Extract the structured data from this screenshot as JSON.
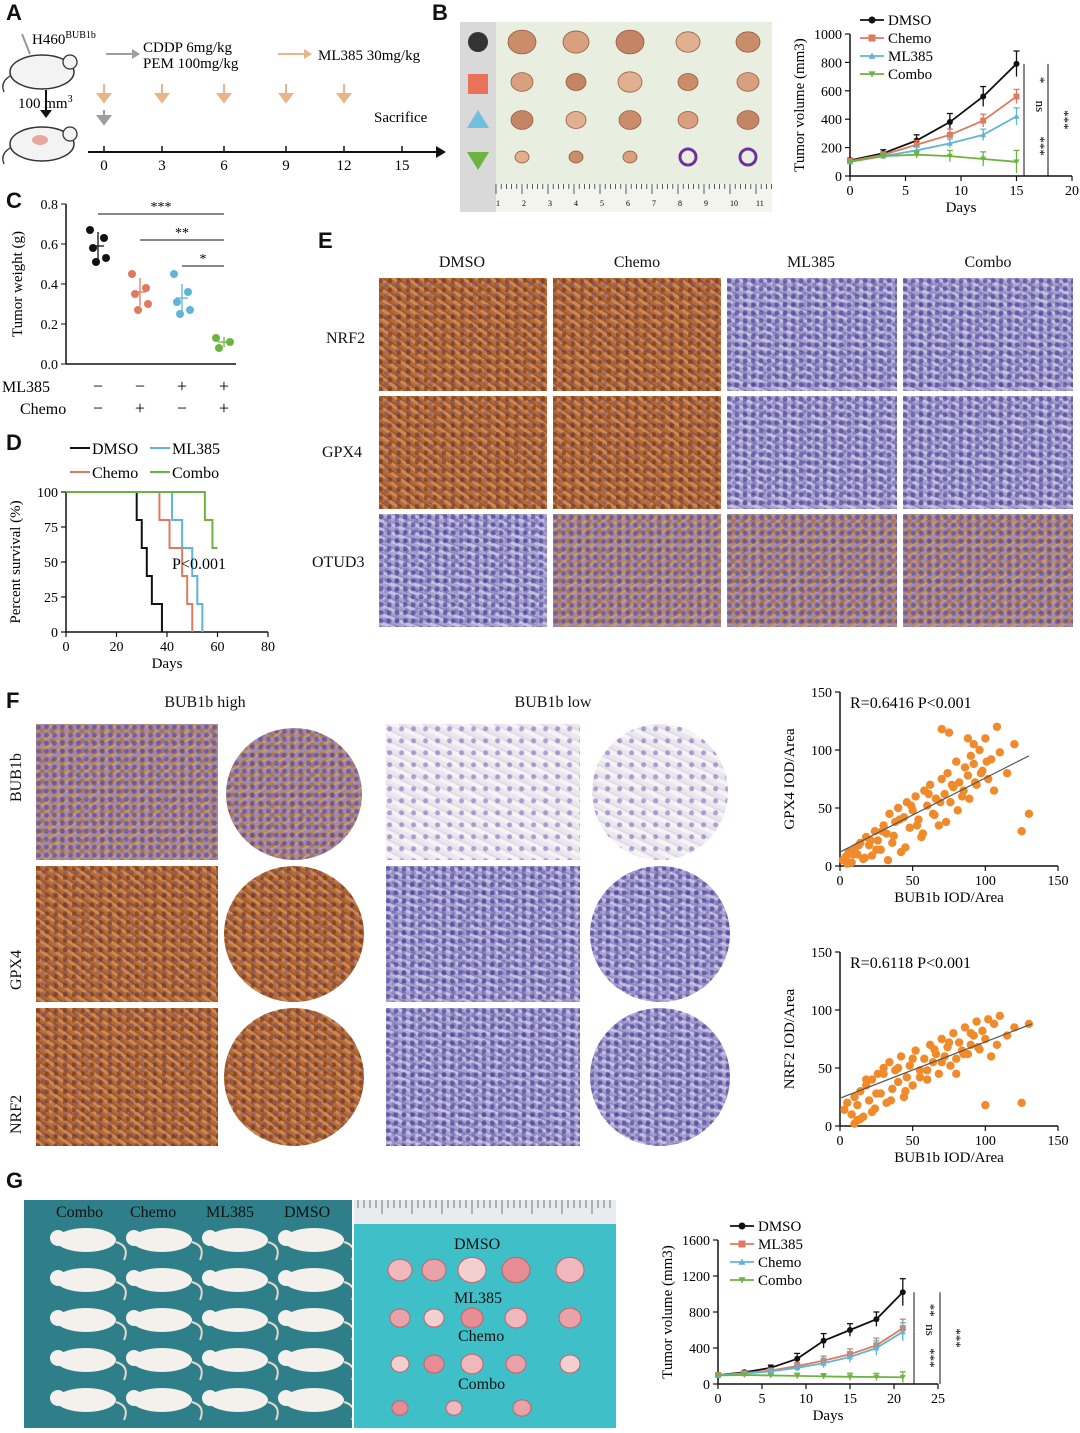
{
  "panels": {
    "A": "A",
    "B": "B",
    "C": "C",
    "D": "D",
    "E": "E",
    "F": "F",
    "G": "G"
  },
  "panel_a": {
    "cell_line": "H460",
    "cell_line_sup": "BUB1b",
    "drug1_line1": "CDDP 6mg/kg",
    "drug1_line2": "PEM 100mg/kg",
    "drug2": "ML385 30mg/kg",
    "size_label": "100 mm",
    "size_sup": "3",
    "days": [
      "0",
      "3",
      "6",
      "9",
      "12",
      "15"
    ],
    "endpoint": "Sacrifice",
    "colors": {
      "chemo_arrow": "#9e9e9e",
      "ml385_arrow": "#e8b48a"
    }
  },
  "panel_b": {
    "ruler_numbers": [
      "1",
      "2",
      "3",
      "4",
      "5",
      "6",
      "7",
      "8",
      "9",
      "10",
      "11",
      "1"
    ],
    "row_markers": [
      "circle",
      "square",
      "triangle-up",
      "triangle-down"
    ],
    "marker_colors": [
      "#333333",
      "#e8735a",
      "#6fc0dc",
      "#6db33f"
    ]
  },
  "panel_c": {
    "ylabel": "Tumor weight (g)",
    "yticks": [
      "0.0",
      "0.2",
      "0.4",
      "0.6",
      "0.8"
    ],
    "row_ml385": "ML385",
    "row_chemo": "Chemo",
    "ml385_signs": [
      "−",
      "−",
      "+",
      "+"
    ],
    "chemo_signs": [
      "−",
      "+",
      "−",
      "+"
    ],
    "sig": [
      "***",
      "**",
      "*"
    ]
  },
  "panel_e": {
    "columns": [
      "DMSO",
      "Chemo",
      "ML385",
      "Combo"
    ],
    "rows": [
      "NRF2",
      "GPX4",
      "OTUD3"
    ]
  },
  "panel_f": {
    "col_high": "BUB1b high",
    "col_low": "BUB1b low",
    "rows": [
      "BUB1b",
      "GPX4",
      "NRF2"
    ]
  },
  "panel_g": {
    "photo_labels": [
      "Combo",
      "Chemo",
      "ML385",
      "DMSO"
    ],
    "tumor_labels": [
      "DMSO",
      "ML385",
      "Chemo",
      "Combo"
    ]
  },
  "chart_data": [
    {
      "id": "B-growth",
      "type": "line",
      "ylabel": "Tumor volume (mm3)",
      "xlabel": "Days",
      "xlim": [
        0,
        20
      ],
      "ylim": [
        0,
        1000
      ],
      "xticks": [
        "0",
        "5",
        "10",
        "15",
        "20"
      ],
      "yticks": [
        "0",
        "200",
        "400",
        "600",
        "800",
        "1000"
      ],
      "x": [
        0,
        3,
        6,
        9,
        12,
        15
      ],
      "series": [
        {
          "name": "DMSO",
          "color": "#111111",
          "values": [
            110,
            160,
            250,
            380,
            560,
            790
          ],
          "err": [
            15,
            25,
            40,
            60,
            70,
            90
          ]
        },
        {
          "name": "Chemo",
          "color": "#e07a5f",
          "values": [
            105,
            150,
            220,
            290,
            390,
            560
          ],
          "err": [
            15,
            20,
            30,
            40,
            45,
            50
          ]
        },
        {
          "name": "ML385",
          "color": "#5fb4d9",
          "values": [
            100,
            140,
            180,
            230,
            290,
            420
          ],
          "err": [
            15,
            20,
            25,
            30,
            40,
            60
          ]
        },
        {
          "name": "Combo",
          "color": "#6db33f",
          "values": [
            100,
            140,
            150,
            140,
            120,
            100
          ],
          "err": [
            15,
            20,
            25,
            40,
            50,
            80
          ]
        }
      ],
      "sig": [
        "*",
        "ns",
        "***",
        "***"
      ]
    },
    {
      "id": "C-weight",
      "type": "scatter",
      "ylim": [
        0,
        0.8
      ],
      "groups": [
        {
          "color": "#111111",
          "values": [
            0.67,
            0.63,
            0.58,
            0.53,
            0.51
          ],
          "mean": 0.59,
          "sd": 0.07
        },
        {
          "color": "#e07a5f",
          "values": [
            0.45,
            0.38,
            0.35,
            0.3,
            0.27
          ],
          "mean": 0.36,
          "sd": 0.07
        },
        {
          "color": "#5fb4d9",
          "values": [
            0.45,
            0.36,
            0.31,
            0.27,
            0.25
          ],
          "mean": 0.33,
          "sd": 0.07
        },
        {
          "color": "#6db33f",
          "values": [
            0.13,
            0.11,
            0.08
          ],
          "mean": 0.11,
          "sd": 0.025
        }
      ]
    },
    {
      "id": "D-survival",
      "type": "line",
      "ylabel": "Percent survival (%)",
      "xlabel": "Days",
      "xlim": [
        0,
        80
      ],
      "ylim": [
        0,
        100
      ],
      "xticks": [
        "0",
        "20",
        "40",
        "60",
        "80"
      ],
      "yticks": [
        "0",
        "25",
        "50",
        "75",
        "100"
      ],
      "annotation": "P<0.001",
      "series": [
        {
          "name": "DMSO",
          "color": "#111111",
          "steps": [
            [
              0,
              100
            ],
            [
              28,
              100
            ],
            [
              28,
              80
            ],
            [
              30,
              80
            ],
            [
              30,
              60
            ],
            [
              32,
              60
            ],
            [
              32,
              40
            ],
            [
              34,
              40
            ],
            [
              34,
              20
            ],
            [
              38,
              20
            ],
            [
              38,
              0
            ]
          ]
        },
        {
          "name": "ML385",
          "color": "#5fb4d9",
          "steps": [
            [
              0,
              100
            ],
            [
              42,
              100
            ],
            [
              42,
              80
            ],
            [
              46,
              80
            ],
            [
              46,
              60
            ],
            [
              50,
              60
            ],
            [
              50,
              40
            ],
            [
              52,
              40
            ],
            [
              52,
              20
            ],
            [
              54,
              20
            ],
            [
              54,
              0
            ]
          ]
        },
        {
          "name": "Chemo",
          "color": "#e07a5f",
          "steps": [
            [
              0,
              100
            ],
            [
              37,
              100
            ],
            [
              37,
              80
            ],
            [
              41,
              80
            ],
            [
              41,
              60
            ],
            [
              46,
              60
            ],
            [
              46,
              40
            ],
            [
              48,
              40
            ],
            [
              48,
              20
            ],
            [
              50,
              20
            ],
            [
              50,
              0
            ]
          ]
        },
        {
          "name": "Combo",
          "color": "#6db33f",
          "steps": [
            [
              0,
              100
            ],
            [
              55,
              100
            ],
            [
              55,
              80
            ],
            [
              58,
              80
            ],
            [
              58,
              60
            ],
            [
              60,
              60
            ]
          ]
        }
      ]
    },
    {
      "id": "F-gpx4",
      "type": "scatter",
      "xlabel": "BUB1b IOD/Area",
      "ylabel": "GPX4 IOD/Area",
      "annotation": "R=0.6416    P<0.001",
      "xlim": [
        0,
        150
      ],
      "ylim": [
        0,
        150
      ],
      "xticks": [
        "0",
        "50",
        "100",
        "150"
      ],
      "yticks": [
        "0",
        "50",
        "100",
        "150"
      ],
      "color": "#f08a2a",
      "fit": [
        [
          0,
          12
        ],
        [
          130,
          95
        ]
      ],
      "x": [
        2,
        4,
        6,
        8,
        10,
        12,
        14,
        16,
        18,
        20,
        22,
        24,
        26,
        28,
        30,
        32,
        34,
        36,
        38,
        40,
        42,
        44,
        46,
        48,
        50,
        52,
        54,
        56,
        58,
        60,
        62,
        64,
        66,
        68,
        70,
        72,
        74,
        76,
        78,
        80,
        82,
        84,
        86,
        88,
        90,
        92,
        94,
        96,
        98,
        100,
        102,
        104,
        106,
        108,
        110,
        115,
        120,
        125,
        130,
        5,
        9,
        13,
        17,
        21,
        25,
        29,
        33,
        37,
        41,
        45,
        49,
        53,
        57,
        61,
        65,
        69,
        73,
        77,
        81,
        85,
        89,
        93,
        97,
        101,
        70,
        75,
        88,
        92
      ],
      "y": [
        5,
        8,
        12,
        3,
        15,
        10,
        20,
        6,
        25,
        18,
        9,
        30,
        22,
        14,
        35,
        28,
        45,
        20,
        38,
        50,
        12,
        42,
        55,
        33,
        48,
        60,
        40,
        25,
        65,
        52,
        70,
        45,
        58,
        35,
        75,
        62,
        80,
        55,
        68,
        90,
        72,
        60,
        85,
        78,
        95,
        88,
        70,
        100,
        82,
        110,
        75,
        92,
        65,
        120,
        98,
        80,
        105,
        30,
        45,
        2,
        10,
        18,
        7,
        22,
        14,
        30,
        5,
        26,
        40,
        16,
        52,
        35,
        28,
        62,
        44,
        55,
        38,
        70,
        48,
        65,
        58,
        72,
        80,
        90,
        118,
        115,
        110,
        105
      ]
    },
    {
      "id": "F-nrf2",
      "type": "scatter",
      "xlabel": "BUB1b IOD/Area",
      "ylabel": "NRF2 IOD/Area",
      "annotation": "R=0.6118    P<0.001",
      "xlim": [
        0,
        150
      ],
      "ylim": [
        0,
        150
      ],
      "xticks": [
        "0",
        "50",
        "100",
        "150"
      ],
      "yticks": [
        "0",
        "50",
        "100",
        "150"
      ],
      "color": "#f08a2a",
      "fit": [
        [
          0,
          24
        ],
        [
          132,
          88
        ]
      ],
      "x": [
        3,
        5,
        8,
        10,
        12,
        14,
        16,
        18,
        20,
        22,
        24,
        26,
        28,
        30,
        32,
        34,
        36,
        38,
        40,
        42,
        44,
        46,
        48,
        50,
        52,
        55,
        58,
        60,
        62,
        64,
        66,
        68,
        70,
        72,
        74,
        76,
        78,
        80,
        82,
        84,
        86,
        88,
        90,
        92,
        94,
        96,
        98,
        100,
        102,
        104,
        106,
        108,
        110,
        115,
        120,
        125,
        130,
        12,
        18,
        25,
        30,
        35,
        40,
        45,
        50,
        55,
        60,
        65,
        70,
        75,
        80,
        85,
        90,
        95,
        100,
        10,
        22,
        14
      ],
      "y": [
        14,
        20,
        10,
        25,
        18,
        30,
        8,
        35,
        22,
        40,
        15,
        45,
        28,
        50,
        20,
        55,
        32,
        48,
        38,
        60,
        25,
        42,
        52,
        35,
        65,
        48,
        58,
        40,
        70,
        55,
        62,
        45,
        75,
        60,
        68,
        52,
        80,
        58,
        72,
        65,
        85,
        62,
        70,
        78,
        90,
        66,
        82,
        75,
        92,
        60,
        88,
        70,
        95,
        78,
        85,
        20,
        88,
        5,
        40,
        28,
        45,
        22,
        50,
        30,
        58,
        42,
        48,
        66,
        55,
        72,
        45,
        62,
        80,
        68,
        18,
        2,
        12,
        6
      ]
    },
    {
      "id": "G-growth",
      "type": "line",
      "ylabel": "Tumor volume (mm3)",
      "xlabel": "Days",
      "xlim": [
        0,
        25
      ],
      "ylim": [
        0,
        1600
      ],
      "xticks": [
        "0",
        "5",
        "10",
        "15",
        "20",
        "25"
      ],
      "yticks": [
        "0",
        "400",
        "800",
        "1200",
        "1600"
      ],
      "x": [
        0,
        3,
        6,
        9,
        12,
        15,
        18,
        21
      ],
      "series": [
        {
          "name": "DMSO",
          "color": "#111111",
          "values": [
            100,
            130,
            180,
            280,
            480,
            600,
            720,
            1020
          ],
          "err": [
            15,
            20,
            30,
            60,
            80,
            70,
            80,
            150
          ]
        },
        {
          "name": "ML385",
          "color": "#e07a5f",
          "values": [
            100,
            120,
            150,
            200,
            260,
            330,
            430,
            620
          ],
          "err": [
            15,
            20,
            25,
            40,
            50,
            60,
            80,
            100
          ]
        },
        {
          "name": "Chemo",
          "color": "#5fb4d9",
          "values": [
            100,
            115,
            140,
            180,
            230,
            300,
            400,
            580
          ],
          "err": [
            15,
            20,
            25,
            40,
            50,
            60,
            80,
            100
          ]
        },
        {
          "name": "Combo",
          "color": "#6db33f",
          "values": [
            95,
            100,
            95,
            90,
            85,
            80,
            78,
            75
          ],
          "err": [
            15,
            20,
            20,
            30,
            30,
            40,
            40,
            60
          ]
        }
      ],
      "sig": [
        "**",
        "ns",
        "***",
        "***"
      ]
    }
  ]
}
